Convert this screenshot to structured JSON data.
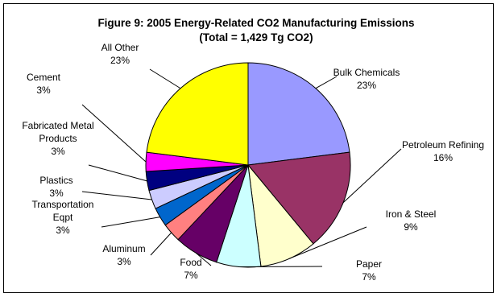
{
  "chart_data": {
    "type": "pie",
    "title": "Figure 9:  2005 Energy-Related CO2 Manufacturing Emissions",
    "subtitle": "(Total = 1,429 Tg CO2)",
    "slices": [
      {
        "name": "Bulk Chemicals",
        "label_lines": [
          "Bulk Chemicals"
        ],
        "pct_label": "23%",
        "value": 23,
        "color": "#9999ff"
      },
      {
        "name": "Petroleum Refining",
        "label_lines": [
          "Petroleum Refining"
        ],
        "pct_label": "16%",
        "value": 16,
        "color": "#993366"
      },
      {
        "name": "Iron & Steel",
        "label_lines": [
          "Iron & Steel"
        ],
        "pct_label": "9%",
        "value": 9,
        "color": "#ffffcc"
      },
      {
        "name": "Paper",
        "label_lines": [
          "Paper"
        ],
        "pct_label": "7%",
        "value": 7,
        "color": "#ccffff"
      },
      {
        "name": "Food",
        "label_lines": [
          "Food"
        ],
        "pct_label": "7%",
        "value": 7,
        "color": "#660066"
      },
      {
        "name": "Aluminum",
        "label_lines": [
          "Aluminum"
        ],
        "pct_label": "3%",
        "value": 3,
        "color": "#ff8080"
      },
      {
        "name": "Transportation Eqpt",
        "label_lines": [
          "Transportation",
          "Eqpt"
        ],
        "pct_label": "3%",
        "value": 3,
        "color": "#0066cc"
      },
      {
        "name": "Plastics",
        "label_lines": [
          "Plastics"
        ],
        "pct_label": "3%",
        "value": 3,
        "color": "#ccccff"
      },
      {
        "name": "Fabricated Metal Products",
        "label_lines": [
          "Fabricated Metal",
          "Products"
        ],
        "pct_label": "3%",
        "value": 3,
        "color": "#000080"
      },
      {
        "name": "Cement",
        "label_lines": [
          "Cement"
        ],
        "pct_label": "3%",
        "value": 3,
        "color": "#ff00ff"
      },
      {
        "name": "All Other",
        "label_lines": [
          "All Other"
        ],
        "pct_label": "23%",
        "value": 23,
        "color": "#ffff00"
      }
    ]
  }
}
